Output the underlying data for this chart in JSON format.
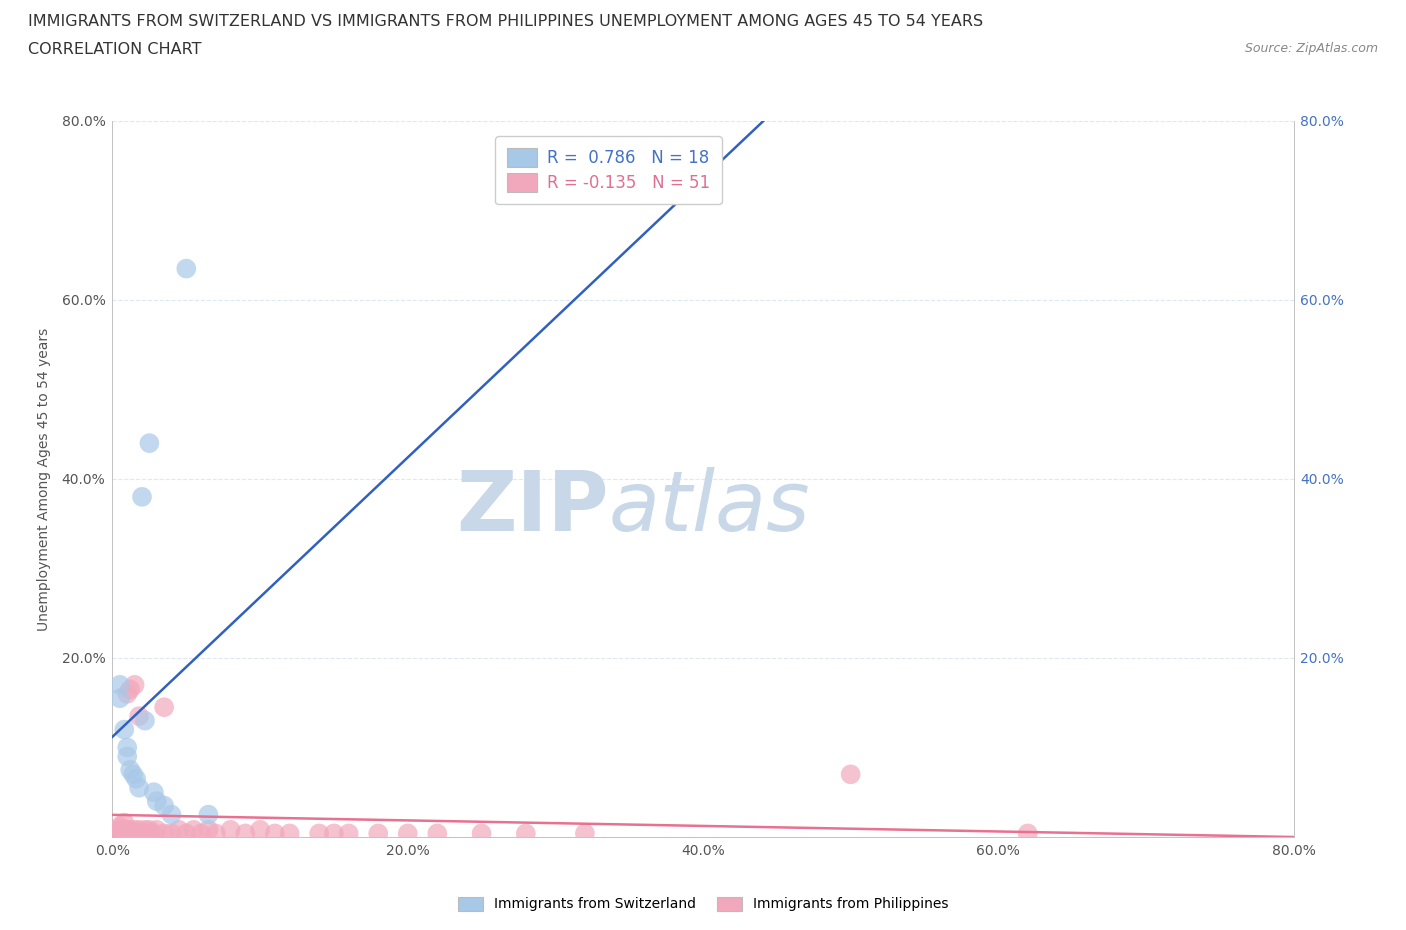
{
  "title_line1": "IMMIGRANTS FROM SWITZERLAND VS IMMIGRANTS FROM PHILIPPINES UNEMPLOYMENT AMONG AGES 45 TO 54 YEARS",
  "title_line2": "CORRELATION CHART",
  "source_text": "Source: ZipAtlas.com",
  "ylabel": "Unemployment Among Ages 45 to 54 years",
  "xlim": [
    0.0,
    0.8
  ],
  "ylim": [
    0.0,
    0.8
  ],
  "xticks": [
    0.0,
    0.2,
    0.4,
    0.6,
    0.8
  ],
  "yticks": [
    0.0,
    0.2,
    0.4,
    0.6,
    0.8
  ],
  "xticklabels": [
    "0.0%",
    "20.0%",
    "40.0%",
    "60.0%",
    "80.0%"
  ],
  "left_yticklabels": [
    "",
    "20.0%",
    "40.0%",
    "60.0%",
    "80.0%"
  ],
  "right_yticklabels": [
    "",
    "20.0%",
    "40.0%",
    "60.0%",
    "80.0%"
  ],
  "switzerland_R": 0.786,
  "switzerland_N": 18,
  "philippines_R": -0.135,
  "philippines_N": 51,
  "switzerland_color": "#a8c8e8",
  "philippines_color": "#f2a8bc",
  "switzerland_line_color": "#3060c0",
  "philippines_line_color": "#e87090",
  "watermark_zip": "ZIP",
  "watermark_atlas": "atlas",
  "watermark_color": "#c8d8e8",
  "legend_sw_color": "#4472c4",
  "legend_ph_color": "#e07090",
  "sw_legend_label": "R =  0.786   N = 18",
  "ph_legend_label": "R = -0.135   N = 51",
  "switzerland_points_x": [
    0.005,
    0.005,
    0.008,
    0.01,
    0.01,
    0.012,
    0.014,
    0.016,
    0.018,
    0.02,
    0.022,
    0.025,
    0.028,
    0.03,
    0.035,
    0.04,
    0.05,
    0.065
  ],
  "switzerland_points_y": [
    0.17,
    0.155,
    0.12,
    0.1,
    0.09,
    0.075,
    0.07,
    0.065,
    0.055,
    0.38,
    0.13,
    0.44,
    0.05,
    0.04,
    0.035,
    0.025,
    0.635,
    0.025
  ],
  "philippines_points_x": [
    0.0,
    0.0,
    0.005,
    0.005,
    0.005,
    0.008,
    0.008,
    0.008,
    0.01,
    0.01,
    0.01,
    0.012,
    0.012,
    0.012,
    0.015,
    0.015,
    0.015,
    0.018,
    0.018,
    0.018,
    0.022,
    0.022,
    0.025,
    0.025,
    0.028,
    0.03,
    0.035,
    0.035,
    0.04,
    0.045,
    0.05,
    0.055,
    0.06,
    0.065,
    0.07,
    0.08,
    0.09,
    0.1,
    0.11,
    0.12,
    0.14,
    0.15,
    0.16,
    0.18,
    0.2,
    0.22,
    0.25,
    0.28,
    0.32,
    0.5,
    0.62
  ],
  "philippines_points_y": [
    0.004,
    0.008,
    0.004,
    0.008,
    0.012,
    0.004,
    0.008,
    0.016,
    0.004,
    0.008,
    0.16,
    0.004,
    0.008,
    0.165,
    0.004,
    0.008,
    0.17,
    0.004,
    0.008,
    0.135,
    0.004,
    0.008,
    0.004,
    0.008,
    0.004,
    0.008,
    0.004,
    0.145,
    0.004,
    0.008,
    0.004,
    0.008,
    0.004,
    0.008,
    0.004,
    0.008,
    0.004,
    0.008,
    0.004,
    0.004,
    0.004,
    0.004,
    0.004,
    0.004,
    0.004,
    0.004,
    0.004,
    0.004,
    0.004,
    0.07,
    0.004
  ],
  "background_color": "#ffffff",
  "grid_color": "#dde8f0",
  "title_fontsize": 11.5,
  "subtitle_fontsize": 11.5,
  "axis_label_fontsize": 10,
  "tick_fontsize": 10,
  "legend_fontsize": 12,
  "source_fontsize": 9
}
